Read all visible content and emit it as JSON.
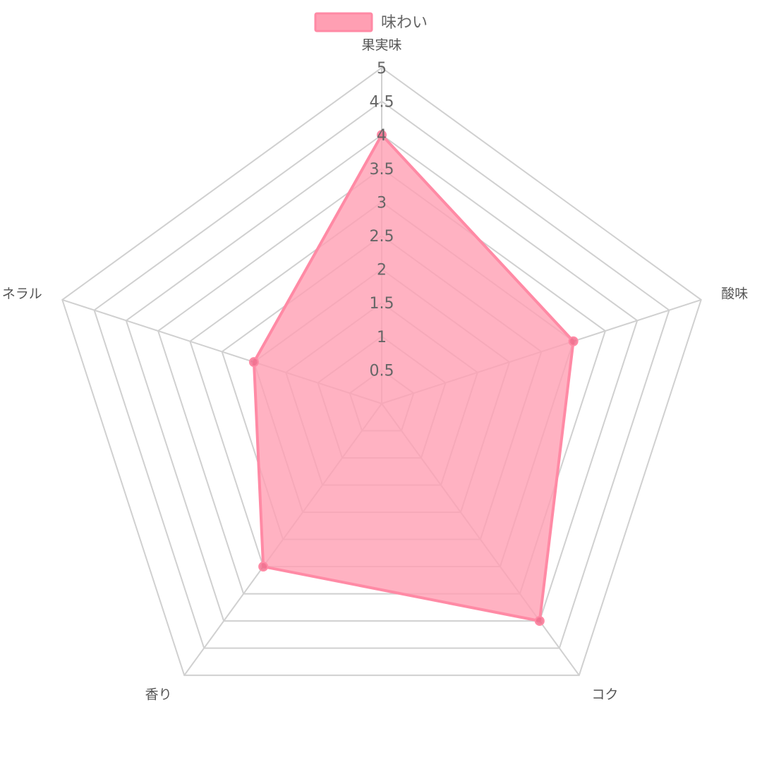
{
  "chart_data": {
    "type": "radar",
    "axes": [
      "果実味",
      "酸味",
      "コク",
      "香り",
      "ミネラル"
    ],
    "ticks": [
      "0.5",
      "1",
      "1.5",
      "2",
      "2.5",
      "3",
      "3.5",
      "4",
      "4.5",
      "5"
    ],
    "rlim": [
      0,
      5
    ],
    "grid": true,
    "legend_position": "top-center",
    "series": [
      {
        "name": "味わい",
        "values": [
          4,
          3,
          4,
          3,
          2
        ],
        "fill_color": "#ff9fb3",
        "line_color": "#ff8aa5"
      }
    ]
  }
}
